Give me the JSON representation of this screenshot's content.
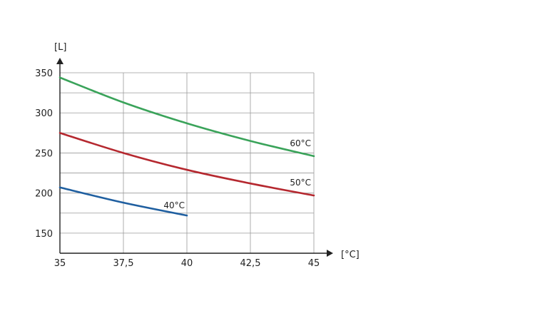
{
  "chart_data": {
    "type": "line",
    "xlabel": "[°C]",
    "ylabel": "[L]",
    "xlim": [
      35,
      45
    ],
    "ylim": [
      125,
      350
    ],
    "x_ticks": [
      "35",
      "37,5",
      "40",
      "42,5",
      "45"
    ],
    "x_tick_values": [
      35,
      37.5,
      40,
      42.5,
      45
    ],
    "y_ticks": [
      "150",
      "200",
      "250",
      "300",
      "350"
    ],
    "y_tick_values": [
      150,
      200,
      250,
      300,
      350
    ],
    "y_minor_grid": [
      175,
      225,
      275,
      325
    ],
    "grid": true,
    "series": [
      {
        "name": "60°C",
        "color": "#3aa35a",
        "x": [
          35,
          37.5,
          40,
          42.5,
          45
        ],
        "y": [
          344,
          313,
          287,
          265,
          246
        ]
      },
      {
        "name": "50°C",
        "color": "#b5282f",
        "x": [
          35,
          37.5,
          40,
          42.5,
          45
        ],
        "y": [
          275,
          250,
          229,
          212,
          197
        ]
      },
      {
        "name": "40°C",
        "color": "#1f5fa0",
        "x": [
          35,
          37.5,
          40
        ],
        "y": [
          207,
          188,
          172
        ]
      }
    ]
  }
}
